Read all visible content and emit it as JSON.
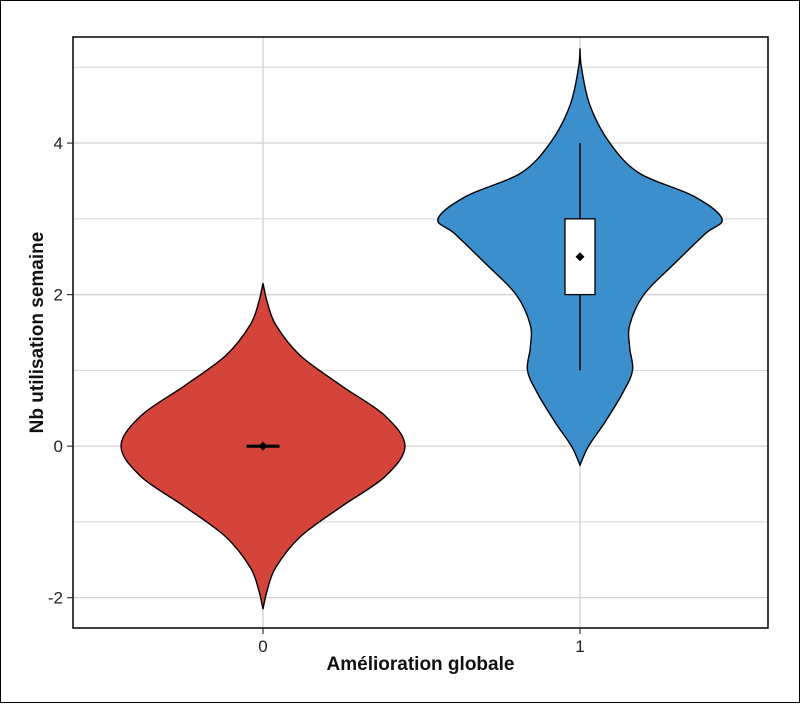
{
  "chart_data": {
    "type": "violin",
    "xlabel": "Amélioration globale",
    "ylabel": "Nb utilisation semaine",
    "categories": [
      "0",
      "1"
    ],
    "ylim": [
      -2.4,
      5.4
    ],
    "yticks": [
      -2,
      0,
      2,
      4
    ],
    "grid": true,
    "legend": "none",
    "violins": [
      {
        "category": "0",
        "color": "#d5443b",
        "range": [
          -2.15,
          2.15
        ],
        "density": [
          [
            -2.15,
            0.0
          ],
          [
            -1.9,
            0.03
          ],
          [
            -1.6,
            0.09
          ],
          [
            -1.2,
            0.26
          ],
          [
            -0.8,
            0.55
          ],
          [
            -0.4,
            0.86
          ],
          [
            0.0,
            1.0
          ],
          [
            0.4,
            0.86
          ],
          [
            0.8,
            0.55
          ],
          [
            1.2,
            0.26
          ],
          [
            1.6,
            0.09
          ],
          [
            1.9,
            0.03
          ],
          [
            2.15,
            0.0
          ]
        ],
        "box": {
          "q1": 0,
          "median": 0,
          "q3": 0,
          "whisker_low": 0,
          "whisker_high": 0
        },
        "mean": 0
      },
      {
        "category": "1",
        "color": "#3b8fcc",
        "range": [
          -0.25,
          5.25
        ],
        "density": [
          [
            -0.25,
            0.0
          ],
          [
            0.0,
            0.06
          ],
          [
            0.3,
            0.17
          ],
          [
            0.7,
            0.3
          ],
          [
            1.0,
            0.37
          ],
          [
            1.3,
            0.35
          ],
          [
            1.6,
            0.35
          ],
          [
            2.0,
            0.45
          ],
          [
            2.4,
            0.66
          ],
          [
            2.8,
            0.88
          ],
          [
            3.0,
            1.0
          ],
          [
            3.3,
            0.8
          ],
          [
            3.6,
            0.42
          ],
          [
            4.0,
            0.21
          ],
          [
            4.5,
            0.07
          ],
          [
            5.0,
            0.01
          ],
          [
            5.25,
            0.0
          ]
        ],
        "box": {
          "q1": 2,
          "median": 3,
          "q3": 3,
          "whisker_low": 1,
          "whisker_high": 4
        },
        "mean": 2.5
      }
    ]
  }
}
